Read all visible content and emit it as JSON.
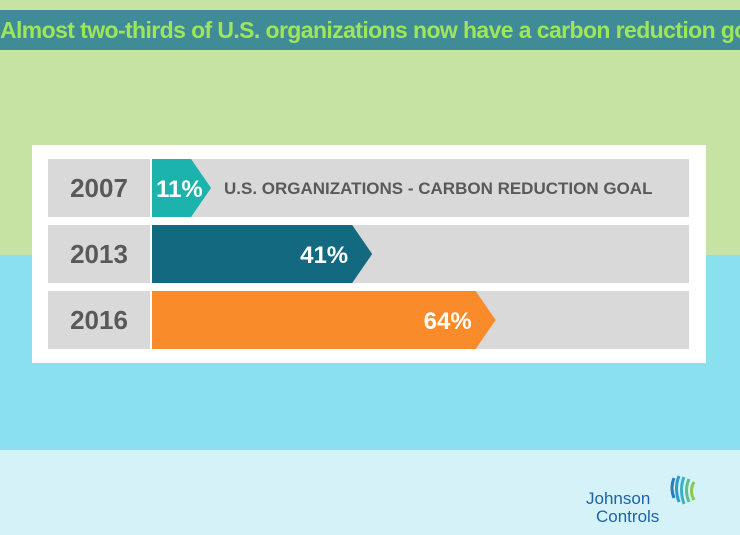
{
  "title": "Almost two-thirds of U.S. organizations now have a carbon reduction goal",
  "colors": {
    "bar_2007": "#1bb3ab",
    "bar_2013": "#136a80",
    "bar_2016": "#f98b2b",
    "track": "#d9d9d9",
    "year_box": "#d9d9d9",
    "title_bg": "#3f8c96",
    "title_text": "#9fe55a"
  },
  "chart_data": {
    "type": "bar",
    "orientation": "horizontal",
    "categories": [
      "2007",
      "2013",
      "2016"
    ],
    "values": [
      11,
      41,
      64
    ],
    "value_labels": [
      "11%",
      "41%",
      "64%"
    ],
    "series_name": "U.S. ORGANIZATIONS - CARBON REDUCTION GOAL",
    "xlim": [
      0,
      100
    ],
    "title": "Almost two-thirds of U.S. organizations now have a carbon reduction goal"
  },
  "logo": {
    "line1": "Johnson",
    "line2": "Controls",
    "icon": "johnson-controls-icon"
  }
}
